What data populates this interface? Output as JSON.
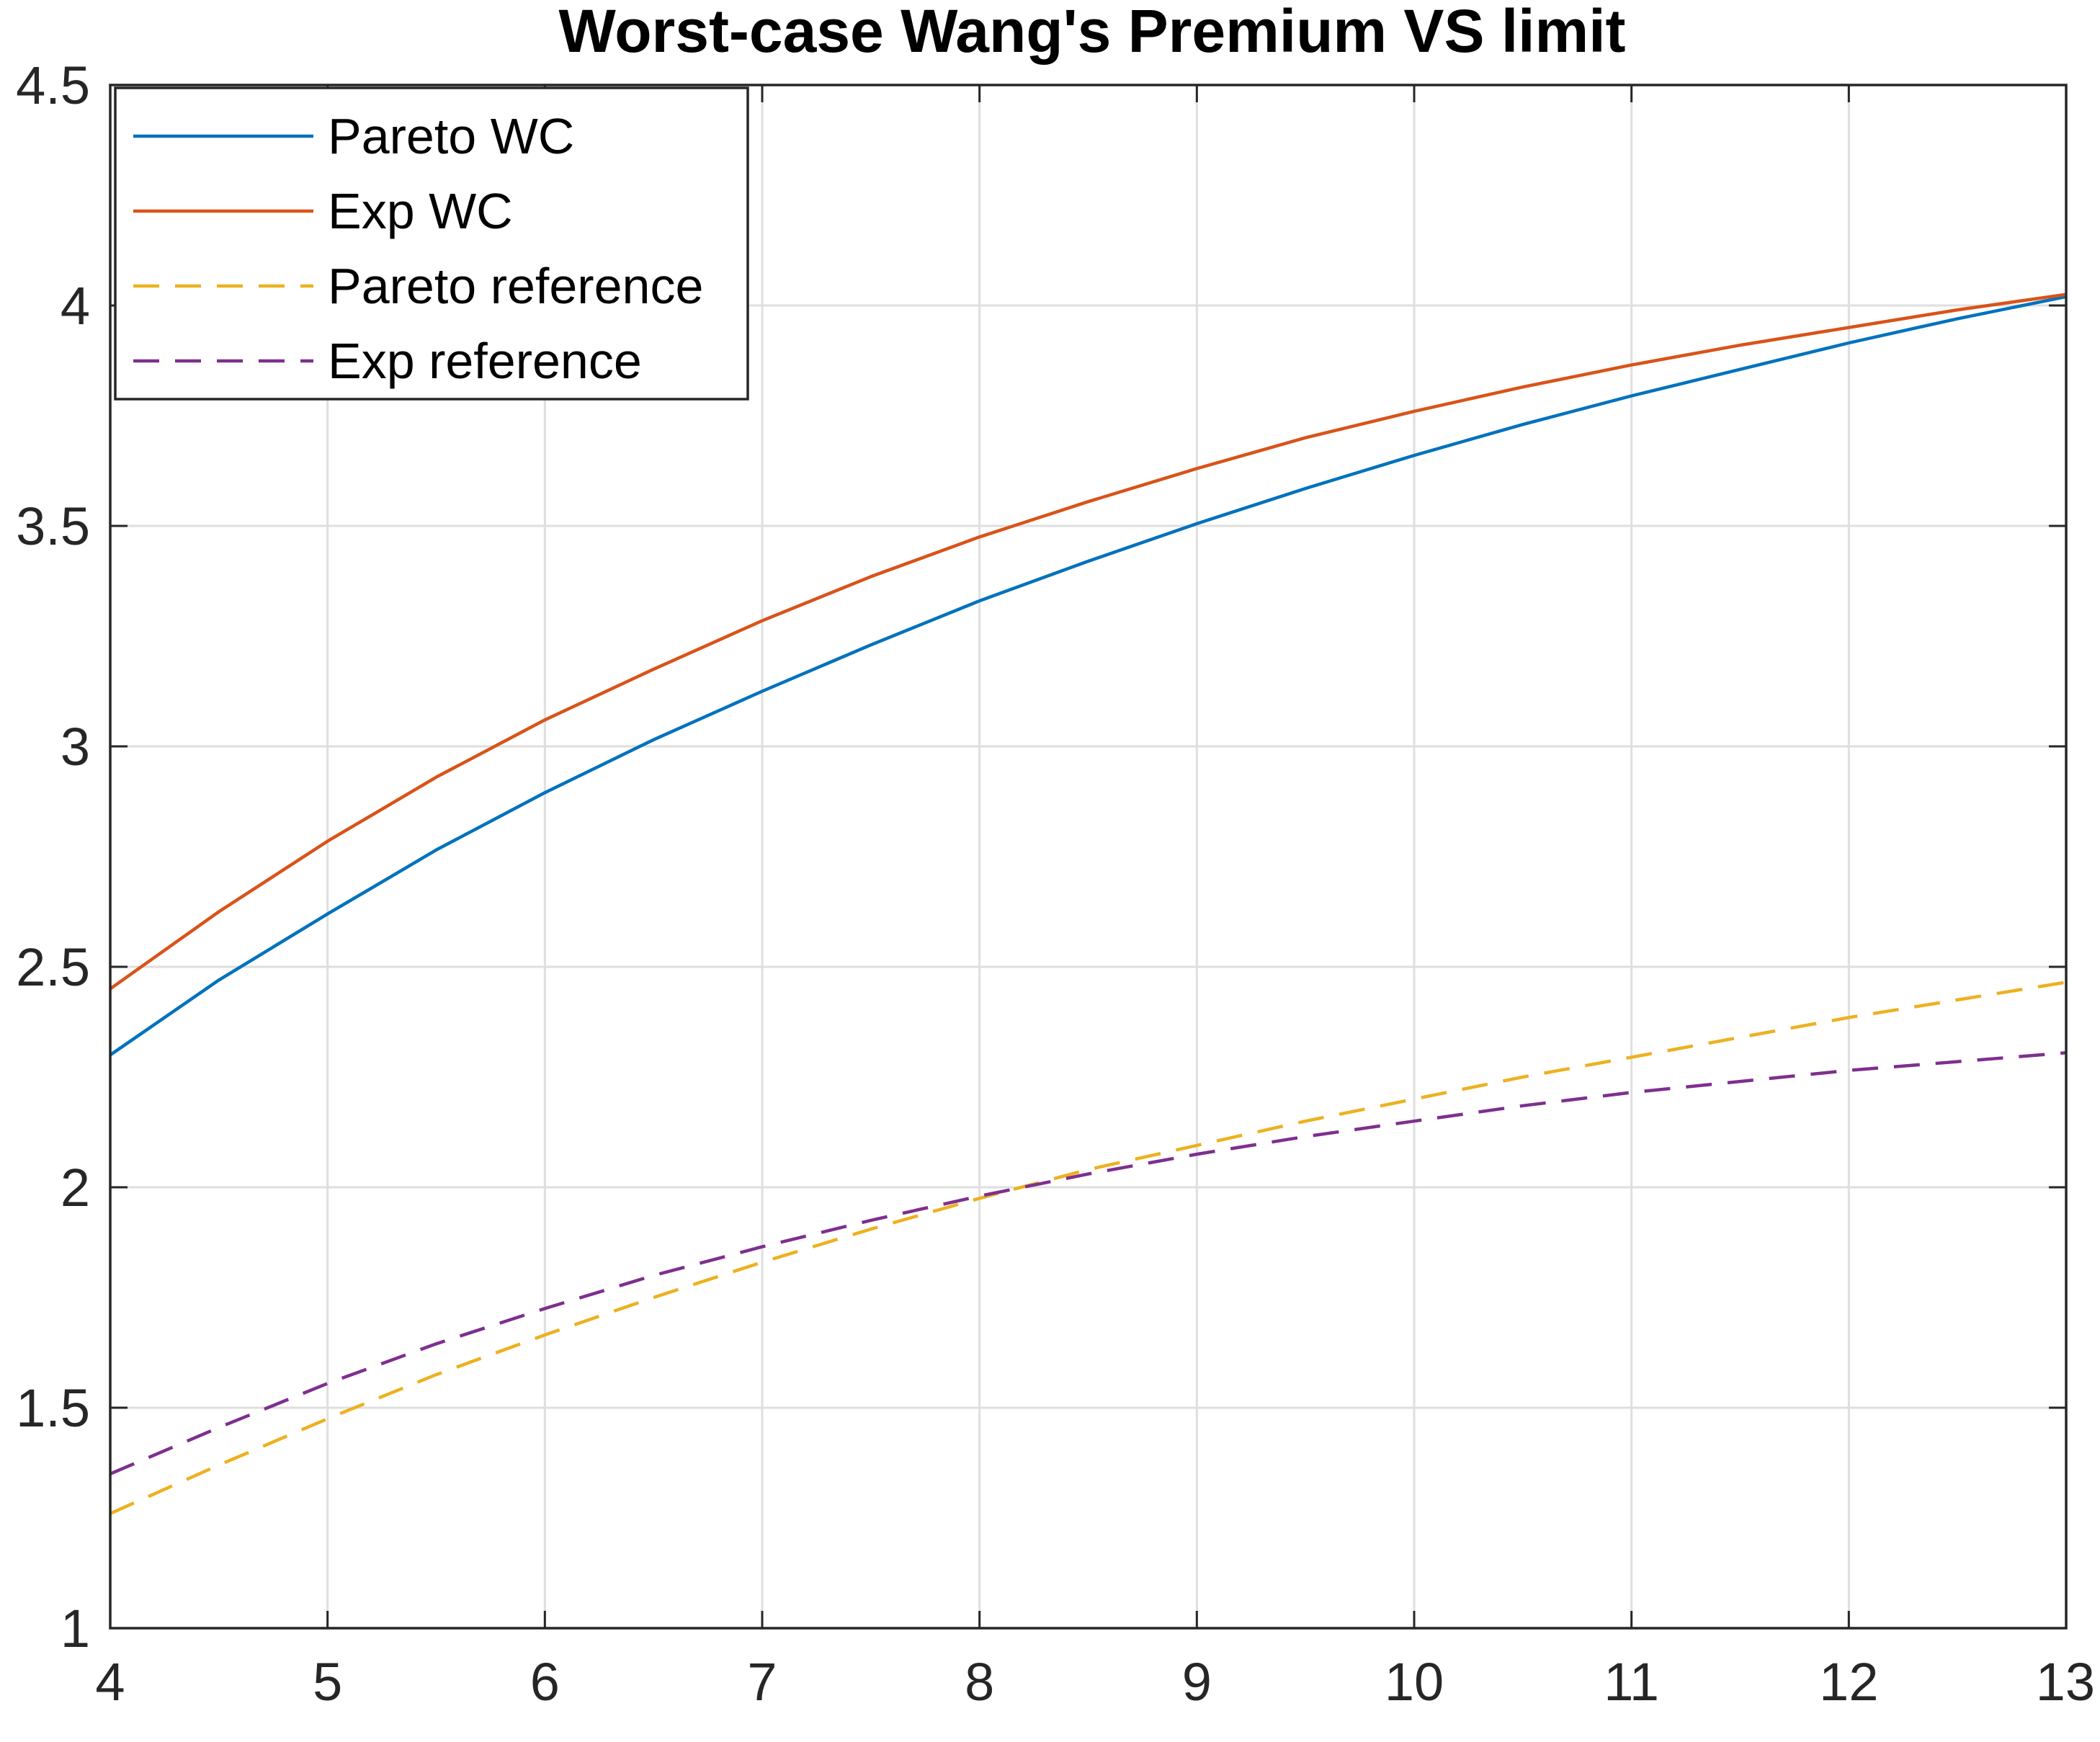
{
  "chart_data": {
    "type": "line",
    "title": "Worst-case Wang's Premium VS limit",
    "xlabel": "",
    "ylabel": "",
    "xlim": [
      4,
      13
    ],
    "ylim": [
      1,
      4.5
    ],
    "xticks": [
      4,
      5,
      6,
      7,
      8,
      9,
      10,
      11,
      12,
      13
    ],
    "yticks": [
      1,
      1.5,
      2,
      2.5,
      3,
      3.5,
      4,
      4.5
    ],
    "xtick_labels": [
      "4",
      "5",
      "6",
      "7",
      "8",
      "9",
      "10",
      "11",
      "12",
      "13"
    ],
    "ytick_labels": [
      "1",
      "1.5",
      "2",
      "2.5",
      "3",
      "3.5",
      "4",
      "4.5"
    ],
    "grid": true,
    "legend_position": "top-left",
    "x": [
      4,
      4.5,
      5,
      5.5,
      6,
      6.5,
      7,
      7.5,
      8,
      8.5,
      9,
      9.5,
      10,
      10.5,
      11,
      11.5,
      12,
      12.5,
      13
    ],
    "series": [
      {
        "name": "Pareto WC",
        "color": "#0072BD",
        "dash": "solid",
        "values": [
          2.3,
          2.47,
          2.62,
          2.765,
          2.895,
          3.015,
          3.125,
          3.23,
          3.33,
          3.42,
          3.505,
          3.585,
          3.66,
          3.73,
          3.795,
          3.855,
          3.915,
          3.97,
          4.02
        ]
      },
      {
        "name": "Exp WC",
        "color": "#D95319",
        "dash": "solid",
        "values": [
          2.45,
          2.625,
          2.785,
          2.93,
          3.06,
          3.175,
          3.285,
          3.385,
          3.475,
          3.555,
          3.63,
          3.7,
          3.76,
          3.815,
          3.865,
          3.91,
          3.95,
          3.99,
          4.025
        ]
      },
      {
        "name": "Pareto reference",
        "color": "#EDB120",
        "dash": "dashed",
        "values": [
          1.26,
          1.37,
          1.475,
          1.575,
          1.665,
          1.75,
          1.83,
          1.905,
          1.975,
          2.04,
          2.095,
          2.15,
          2.2,
          2.25,
          2.295,
          2.34,
          2.385,
          2.425,
          2.465
        ]
      },
      {
        "name": "Exp reference",
        "color": "#7E2F8E",
        "dash": "dashed",
        "values": [
          1.35,
          1.455,
          1.555,
          1.645,
          1.725,
          1.8,
          1.865,
          1.925,
          1.98,
          2.03,
          2.075,
          2.115,
          2.15,
          2.185,
          2.215,
          2.24,
          2.265,
          2.285,
          2.305
        ]
      }
    ]
  }
}
